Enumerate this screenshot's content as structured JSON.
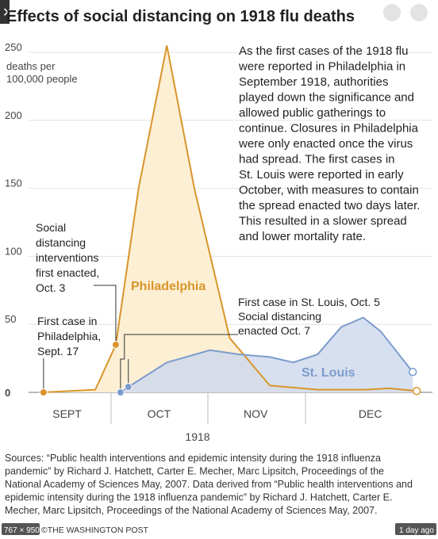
{
  "chart_data": {
    "type": "area",
    "title": "Effects of social distancing on 1918 flu deaths",
    "y_label": [
      "deaths per",
      "100,000 people"
    ],
    "x_label": "1918",
    "xlim": [
      0,
      50
    ],
    "xticks": [
      {
        "value": 4.5,
        "label": "SEPT"
      },
      {
        "value": 16.2,
        "label": "OCT"
      },
      {
        "value": 28.5,
        "label": "NOV"
      },
      {
        "value": 43.1,
        "label": "DEC"
      }
    ],
    "ylim": [
      0,
      250
    ],
    "yticks": [
      0,
      50,
      100,
      150,
      200,
      250
    ],
    "grid": true,
    "series": [
      {
        "name": "Philadelphia",
        "color": "#d8952b",
        "fill": "#fcefd4",
        "x": [
          1.5,
          8.1,
          10.7,
          13.6,
          17.2,
          20.7,
          25.2,
          30.3,
          36.4,
          42.4,
          45.5,
          49
        ],
        "values": [
          0,
          2,
          35,
          150,
          255,
          150,
          40,
          5,
          2,
          2,
          3,
          1
        ]
      },
      {
        "name": "St. Louis",
        "color": "#7c9ccc",
        "fill": "#cdd8ec",
        "x": [
          11.3,
          12.3,
          17.2,
          22.7,
          26.3,
          30.3,
          33.3,
          36.4,
          39.4,
          42.2,
          44.4,
          48.5
        ],
        "values": [
          0,
          4,
          22,
          31,
          28,
          26,
          22,
          28,
          48,
          55,
          45,
          15
        ]
      }
    ],
    "annotations": [
      [
        "Social",
        "distancing",
        "interventions",
        "first enacted,",
        "Oct. 3"
      ],
      [
        "First case in",
        "Philadelphia,",
        "Sept. 17"
      ],
      [
        "First case in St. Louis, Oct. 5",
        "Social distancing",
        "enacted Oct. 7"
      ]
    ],
    "description": [
      "As the first cases of the 1918 flu",
      "were reported in Philadelphia in",
      "September 1918, authorities",
      "played down the significance and",
      "allowed public gatherings to",
      "continue. Closures in Philadelphia",
      "were only enacted once the virus",
      "had spread. The first cases in",
      "St. Louis were reported in early",
      "October, with measures to contain",
      "the spread enacted two days later.",
      "This resulted in a slower spread",
      "and lower mortality rate."
    ],
    "sources": [
      "Sources: “Public health interventions and epidemic intensity during the 1918 influenza",
      "pandemic” by Richard J. Hatchett, Carter E. Mecher, Marc Lipsitch, Proceedings of the",
      "National Academy of Sciences May, 2007. Data derived from “Public health interventions and",
      "epidemic intensity during the 1918 influenza pandemic” by Richard J. Hatchett, Carter E.",
      "Mecher, Marc Lipsitch, Proceedings of the National Academy of Sciences May, 2007."
    ]
  },
  "overlay": {
    "size": "767 × 950",
    "credit": "©THE WASHINGTON POST",
    "time": "1 day ago"
  }
}
